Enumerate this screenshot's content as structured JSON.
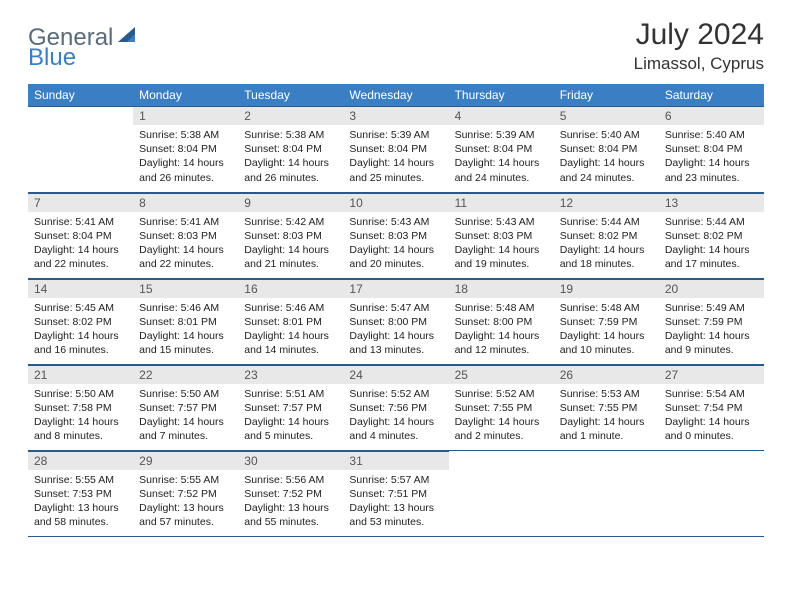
{
  "brand": {
    "part1": "General",
    "part2": "Blue"
  },
  "title": "July 2024",
  "location": "Limassol, Cyprus",
  "colors": {
    "header_bg": "#3a7fc4",
    "daynum_bg": "#e8e8e8",
    "border": "#2a5a8a"
  },
  "weekdays": [
    "Sunday",
    "Monday",
    "Tuesday",
    "Wednesday",
    "Thursday",
    "Friday",
    "Saturday"
  ],
  "weeks": [
    [
      {
        "n": "",
        "lines": []
      },
      {
        "n": "1",
        "lines": [
          "Sunrise: 5:38 AM",
          "Sunset: 8:04 PM",
          "Daylight: 14 hours",
          "and 26 minutes."
        ]
      },
      {
        "n": "2",
        "lines": [
          "Sunrise: 5:38 AM",
          "Sunset: 8:04 PM",
          "Daylight: 14 hours",
          "and 26 minutes."
        ]
      },
      {
        "n": "3",
        "lines": [
          "Sunrise: 5:39 AM",
          "Sunset: 8:04 PM",
          "Daylight: 14 hours",
          "and 25 minutes."
        ]
      },
      {
        "n": "4",
        "lines": [
          "Sunrise: 5:39 AM",
          "Sunset: 8:04 PM",
          "Daylight: 14 hours",
          "and 24 minutes."
        ]
      },
      {
        "n": "5",
        "lines": [
          "Sunrise: 5:40 AM",
          "Sunset: 8:04 PM",
          "Daylight: 14 hours",
          "and 24 minutes."
        ]
      },
      {
        "n": "6",
        "lines": [
          "Sunrise: 5:40 AM",
          "Sunset: 8:04 PM",
          "Daylight: 14 hours",
          "and 23 minutes."
        ]
      }
    ],
    [
      {
        "n": "7",
        "lines": [
          "Sunrise: 5:41 AM",
          "Sunset: 8:04 PM",
          "Daylight: 14 hours",
          "and 22 minutes."
        ]
      },
      {
        "n": "8",
        "lines": [
          "Sunrise: 5:41 AM",
          "Sunset: 8:03 PM",
          "Daylight: 14 hours",
          "and 22 minutes."
        ]
      },
      {
        "n": "9",
        "lines": [
          "Sunrise: 5:42 AM",
          "Sunset: 8:03 PM",
          "Daylight: 14 hours",
          "and 21 minutes."
        ]
      },
      {
        "n": "10",
        "lines": [
          "Sunrise: 5:43 AM",
          "Sunset: 8:03 PM",
          "Daylight: 14 hours",
          "and 20 minutes."
        ]
      },
      {
        "n": "11",
        "lines": [
          "Sunrise: 5:43 AM",
          "Sunset: 8:03 PM",
          "Daylight: 14 hours",
          "and 19 minutes."
        ]
      },
      {
        "n": "12",
        "lines": [
          "Sunrise: 5:44 AM",
          "Sunset: 8:02 PM",
          "Daylight: 14 hours",
          "and 18 minutes."
        ]
      },
      {
        "n": "13",
        "lines": [
          "Sunrise: 5:44 AM",
          "Sunset: 8:02 PM",
          "Daylight: 14 hours",
          "and 17 minutes."
        ]
      }
    ],
    [
      {
        "n": "14",
        "lines": [
          "Sunrise: 5:45 AM",
          "Sunset: 8:02 PM",
          "Daylight: 14 hours",
          "and 16 minutes."
        ]
      },
      {
        "n": "15",
        "lines": [
          "Sunrise: 5:46 AM",
          "Sunset: 8:01 PM",
          "Daylight: 14 hours",
          "and 15 minutes."
        ]
      },
      {
        "n": "16",
        "lines": [
          "Sunrise: 5:46 AM",
          "Sunset: 8:01 PM",
          "Daylight: 14 hours",
          "and 14 minutes."
        ]
      },
      {
        "n": "17",
        "lines": [
          "Sunrise: 5:47 AM",
          "Sunset: 8:00 PM",
          "Daylight: 14 hours",
          "and 13 minutes."
        ]
      },
      {
        "n": "18",
        "lines": [
          "Sunrise: 5:48 AM",
          "Sunset: 8:00 PM",
          "Daylight: 14 hours",
          "and 12 minutes."
        ]
      },
      {
        "n": "19",
        "lines": [
          "Sunrise: 5:48 AM",
          "Sunset: 7:59 PM",
          "Daylight: 14 hours",
          "and 10 minutes."
        ]
      },
      {
        "n": "20",
        "lines": [
          "Sunrise: 5:49 AM",
          "Sunset: 7:59 PM",
          "Daylight: 14 hours",
          "and 9 minutes."
        ]
      }
    ],
    [
      {
        "n": "21",
        "lines": [
          "Sunrise: 5:50 AM",
          "Sunset: 7:58 PM",
          "Daylight: 14 hours",
          "and 8 minutes."
        ]
      },
      {
        "n": "22",
        "lines": [
          "Sunrise: 5:50 AM",
          "Sunset: 7:57 PM",
          "Daylight: 14 hours",
          "and 7 minutes."
        ]
      },
      {
        "n": "23",
        "lines": [
          "Sunrise: 5:51 AM",
          "Sunset: 7:57 PM",
          "Daylight: 14 hours",
          "and 5 minutes."
        ]
      },
      {
        "n": "24",
        "lines": [
          "Sunrise: 5:52 AM",
          "Sunset: 7:56 PM",
          "Daylight: 14 hours",
          "and 4 minutes."
        ]
      },
      {
        "n": "25",
        "lines": [
          "Sunrise: 5:52 AM",
          "Sunset: 7:55 PM",
          "Daylight: 14 hours",
          "and 2 minutes."
        ]
      },
      {
        "n": "26",
        "lines": [
          "Sunrise: 5:53 AM",
          "Sunset: 7:55 PM",
          "Daylight: 14 hours",
          "and 1 minute."
        ]
      },
      {
        "n": "27",
        "lines": [
          "Sunrise: 5:54 AM",
          "Sunset: 7:54 PM",
          "Daylight: 14 hours",
          "and 0 minutes."
        ]
      }
    ],
    [
      {
        "n": "28",
        "lines": [
          "Sunrise: 5:55 AM",
          "Sunset: 7:53 PM",
          "Daylight: 13 hours",
          "and 58 minutes."
        ]
      },
      {
        "n": "29",
        "lines": [
          "Sunrise: 5:55 AM",
          "Sunset: 7:52 PM",
          "Daylight: 13 hours",
          "and 57 minutes."
        ]
      },
      {
        "n": "30",
        "lines": [
          "Sunrise: 5:56 AM",
          "Sunset: 7:52 PM",
          "Daylight: 13 hours",
          "and 55 minutes."
        ]
      },
      {
        "n": "31",
        "lines": [
          "Sunrise: 5:57 AM",
          "Sunset: 7:51 PM",
          "Daylight: 13 hours",
          "and 53 minutes."
        ]
      },
      {
        "n": "",
        "lines": []
      },
      {
        "n": "",
        "lines": []
      },
      {
        "n": "",
        "lines": []
      }
    ]
  ]
}
